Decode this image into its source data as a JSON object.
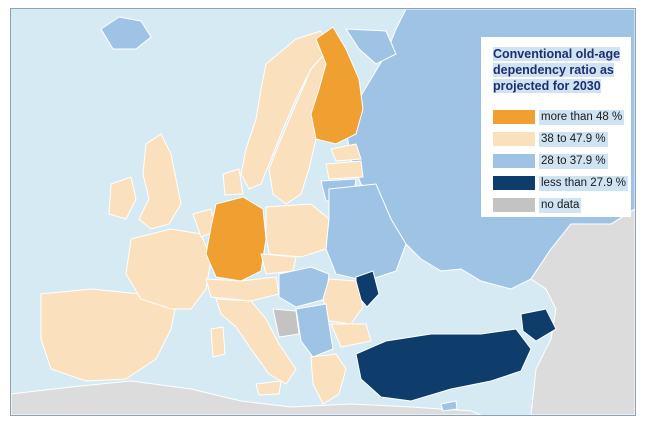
{
  "legend": {
    "title": "Conventional old-age dependency ratio as projected for 2030",
    "items": [
      {
        "label": "more than 48 %",
        "color": "#f0a030"
      },
      {
        "label": "38  to 47.9 %",
        "color": "#fbe0bd"
      },
      {
        "label": "28 to 37.9 %",
        "color": "#9fc3e5"
      },
      {
        "label": "less than 27.9 %",
        "color": "#0e3d6b"
      },
      {
        "label": "no data",
        "color": "#c3c3c3"
      }
    ]
  },
  "colors": {
    "sea": "#d6eaf3",
    "non_member": "#dcdcdc",
    "border": "#ffffff"
  }
}
